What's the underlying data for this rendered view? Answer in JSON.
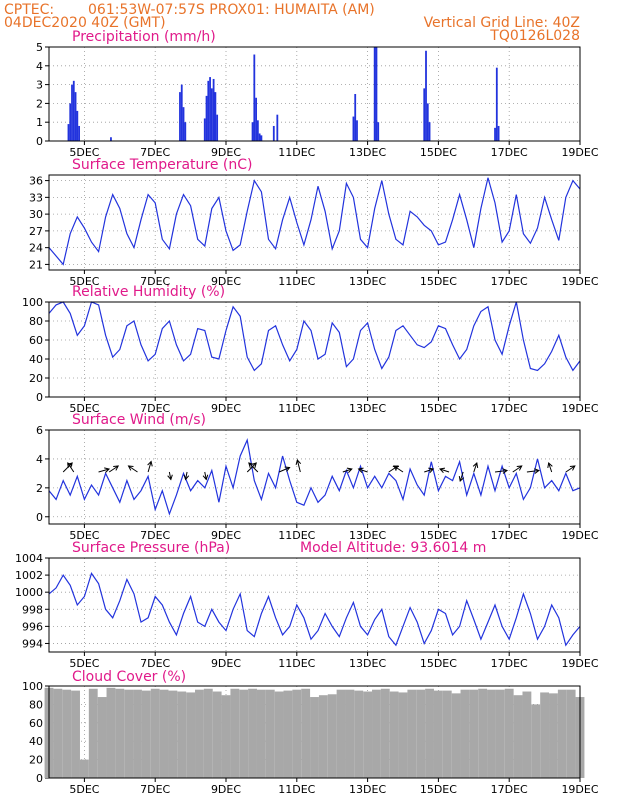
{
  "header": {
    "source": "CPTEC:",
    "location": "061:53W-07:57S   PROX01: HUMAITA (AM)",
    "run": "04DEC2020 40Z (GMT)",
    "grid_note": "Vertical Grid Line: 40Z",
    "model": "TQ0126L028"
  },
  "model_altitude_label": "Model Altitude:  93.6014  m",
  "date_ticks": [
    "5DEC",
    "7DEC",
    "9DEC",
    "11DEC",
    "13DEC",
    "15DEC",
    "17DEC",
    "19DEC"
  ],
  "colors": {
    "line": "#2233dd",
    "cloud": "#a8a8a8",
    "header": "#e8732a",
    "title": "#e01a8a"
  },
  "chart_data": [
    {
      "type": "bar",
      "title": "Precipitation  (mm/h)",
      "x_unit": "days since 04DEC2020 00Z",
      "ylim": [
        0,
        5
      ],
      "yticks": [
        "0",
        "1",
        "2",
        "3",
        "4",
        "5"
      ],
      "grid": true,
      "events": [
        [
          0.55,
          0.9
        ],
        [
          0.6,
          2.0
        ],
        [
          0.65,
          3.0
        ],
        [
          0.7,
          3.2
        ],
        [
          0.75,
          2.6
        ],
        [
          0.8,
          1.6
        ],
        [
          0.85,
          0.8
        ],
        [
          1.75,
          0.2
        ],
        [
          3.7,
          2.6
        ],
        [
          3.75,
          3.0
        ],
        [
          3.8,
          1.8
        ],
        [
          3.85,
          1.0
        ],
        [
          4.4,
          1.2
        ],
        [
          4.45,
          2.4
        ],
        [
          4.5,
          3.2
        ],
        [
          4.55,
          3.4
        ],
        [
          4.6,
          2.8
        ],
        [
          4.65,
          3.3
        ],
        [
          4.7,
          2.6
        ],
        [
          4.75,
          1.4
        ],
        [
          5.75,
          1.0
        ],
        [
          5.8,
          4.6
        ],
        [
          5.85,
          2.3
        ],
        [
          5.9,
          1.1
        ],
        [
          5.95,
          0.4
        ],
        [
          6.0,
          0.3
        ],
        [
          6.35,
          0.8
        ],
        [
          6.45,
          1.4
        ],
        [
          8.6,
          1.3
        ],
        [
          8.65,
          2.5
        ],
        [
          8.7,
          1.1
        ],
        [
          9.2,
          5.0
        ],
        [
          9.25,
          5.0
        ],
        [
          9.3,
          1.0
        ],
        [
          10.6,
          2.8
        ],
        [
          10.65,
          4.8
        ],
        [
          10.7,
          2.0
        ],
        [
          10.75,
          1.0
        ],
        [
          12.6,
          0.7
        ],
        [
          12.65,
          3.9
        ],
        [
          12.7,
          0.8
        ]
      ]
    },
    {
      "type": "line",
      "title": "Surface Temperature  (nC)",
      "x_unit": "days since 04DEC2020 00Z",
      "ylim": [
        20,
        37
      ],
      "yticks": [
        "21",
        "24",
        "27",
        "30",
        "33",
        "36"
      ],
      "grid": true,
      "x": [
        0,
        0.2,
        0.4,
        0.6,
        0.8,
        1.0,
        1.2,
        1.4,
        1.6,
        1.8,
        2.0,
        2.2,
        2.4,
        2.6,
        2.8,
        3.0,
        3.2,
        3.4,
        3.6,
        3.8,
        4.0,
        4.2,
        4.4,
        4.6,
        4.8,
        5.0,
        5.2,
        5.4,
        5.6,
        5.8,
        6.0,
        6.2,
        6.4,
        6.6,
        6.8,
        7.0,
        7.2,
        7.4,
        7.6,
        7.8,
        8.0,
        8.2,
        8.4,
        8.6,
        8.8,
        9.0,
        9.2,
        9.4,
        9.6,
        9.8,
        10.0,
        10.2,
        10.4,
        10.6,
        10.8,
        11.0,
        11.2,
        11.4,
        11.6,
        11.8,
        12.0,
        12.2,
        12.4,
        12.6,
        12.8,
        13.0,
        13.2,
        13.4,
        13.6,
        13.8,
        14.0,
        14.2,
        14.4,
        14.6,
        14.8,
        15.0
      ],
      "y": [
        24.0,
        22.5,
        21.0,
        26.5,
        29.5,
        27.5,
        25.0,
        23.3,
        29.5,
        33.5,
        31.0,
        26.5,
        24.0,
        29.0,
        33.5,
        32.0,
        25.5,
        23.8,
        30.0,
        33.5,
        31.5,
        25.5,
        24.3,
        31.0,
        33.0,
        27.0,
        23.5,
        24.5,
        30.5,
        36.0,
        34.0,
        25.5,
        23.8,
        29.0,
        33.0,
        28.5,
        24.5,
        29.0,
        35.0,
        30.5,
        23.8,
        27.0,
        35.5,
        33.0,
        25.5,
        24.0,
        31.0,
        36.0,
        30.0,
        25.5,
        24.5,
        30.5,
        29.5,
        28.0,
        27.0,
        24.5,
        25.0,
        29.0,
        33.5,
        29.0,
        24.0,
        31.0,
        36.5,
        32.0,
        25.0,
        27.0,
        33.5,
        26.5,
        24.8,
        27.5,
        33.0,
        29.0,
        25.3,
        33.0,
        36.0,
        34.5
      ]
    },
    {
      "type": "line",
      "title": "Relative Humidity  (%)",
      "x_unit": "days since 04DEC2020 00Z",
      "ylim": [
        0,
        100
      ],
      "yticks": [
        "0",
        "20",
        "40",
        "60",
        "80",
        "100"
      ],
      "grid": true,
      "x": [
        0,
        0.2,
        0.4,
        0.6,
        0.8,
        1.0,
        1.2,
        1.4,
        1.6,
        1.8,
        2.0,
        2.2,
        2.4,
        2.6,
        2.8,
        3.0,
        3.2,
        3.4,
        3.6,
        3.8,
        4.0,
        4.2,
        4.4,
        4.6,
        4.8,
        5.0,
        5.2,
        5.4,
        5.6,
        5.8,
        6.0,
        6.2,
        6.4,
        6.6,
        6.8,
        7.0,
        7.2,
        7.4,
        7.6,
        7.8,
        8.0,
        8.2,
        8.4,
        8.6,
        8.8,
        9.0,
        9.2,
        9.4,
        9.6,
        9.8,
        10.0,
        10.2,
        10.4,
        10.6,
        10.8,
        11.0,
        11.2,
        11.4,
        11.6,
        11.8,
        12.0,
        12.2,
        12.4,
        12.6,
        12.8,
        13.0,
        13.2,
        13.4,
        13.6,
        13.8,
        14.0,
        14.2,
        14.4,
        14.6,
        14.8,
        15.0
      ],
      "y": [
        88,
        97,
        100,
        88,
        65,
        75,
        100,
        97,
        65,
        42,
        50,
        75,
        80,
        55,
        38,
        45,
        72,
        80,
        55,
        38,
        45,
        72,
        70,
        42,
        40,
        70,
        95,
        85,
        42,
        28,
        35,
        70,
        75,
        55,
        38,
        50,
        80,
        70,
        40,
        45,
        78,
        68,
        32,
        40,
        70,
        78,
        50,
        30,
        42,
        70,
        75,
        65,
        55,
        52,
        58,
        75,
        72,
        55,
        40,
        50,
        75,
        90,
        95,
        60,
        45,
        75,
        100,
        60,
        30,
        28,
        35,
        48,
        65,
        42,
        28,
        38
      ]
    },
    {
      "type": "line",
      "title": "Surface Wind  (m/s)",
      "x_unit": "days since 04DEC2020 00Z",
      "ylim": [
        -0.5,
        6
      ],
      "yticks": [
        "0",
        "2",
        "4",
        "6"
      ],
      "grid": true,
      "x": [
        0,
        0.2,
        0.4,
        0.6,
        0.8,
        1.0,
        1.2,
        1.4,
        1.6,
        1.8,
        2.0,
        2.2,
        2.4,
        2.6,
        2.8,
        3.0,
        3.2,
        3.4,
        3.6,
        3.8,
        4.0,
        4.2,
        4.4,
        4.6,
        4.8,
        5.0,
        5.2,
        5.4,
        5.6,
        5.8,
        6.0,
        6.2,
        6.4,
        6.6,
        6.8,
        7.0,
        7.2,
        7.4,
        7.6,
        7.8,
        8.0,
        8.2,
        8.4,
        8.6,
        8.8,
        9.0,
        9.2,
        9.4,
        9.6,
        9.8,
        10.0,
        10.2,
        10.4,
        10.6,
        10.8,
        11.0,
        11.2,
        11.4,
        11.6,
        11.8,
        12.0,
        12.2,
        12.4,
        12.6,
        12.8,
        13.0,
        13.2,
        13.4,
        13.6,
        13.8,
        14.0,
        14.2,
        14.4,
        14.6,
        14.8,
        15.0
      ],
      "y": [
        1.8,
        1.2,
        2.5,
        1.5,
        2.8,
        1.2,
        2.2,
        1.5,
        3.0,
        2.0,
        1.0,
        2.5,
        1.2,
        1.8,
        2.8,
        0.5,
        1.8,
        0.2,
        1.5,
        3.0,
        1.8,
        2.5,
        2.0,
        3.2,
        1.0,
        3.5,
        2.0,
        4.2,
        5.3,
        2.5,
        1.2,
        3.0,
        2.0,
        4.2,
        2.5,
        1.0,
        0.8,
        2.0,
        1.0,
        1.5,
        2.8,
        1.8,
        3.2,
        2.0,
        3.5,
        2.0,
        2.8,
        2.0,
        3.0,
        2.5,
        1.2,
        3.3,
        2.2,
        1.5,
        3.8,
        1.8,
        2.8,
        2.5,
        3.8,
        1.5,
        3.0,
        1.5,
        3.5,
        1.8,
        3.5,
        2.0,
        3.0,
        1.2,
        2.0,
        4.0,
        2.0,
        2.5,
        1.8,
        3.0,
        1.8,
        2.0
      ],
      "arrows": [
        [
          0.4,
          0.3,
          0.3
        ],
        [
          0.7,
          -0.2,
          0.3
        ],
        [
          1.4,
          0.35,
          0.1
        ],
        [
          1.7,
          0.3,
          0.2
        ],
        [
          2.5,
          -0.3,
          0.2
        ],
        [
          2.8,
          0.1,
          0.35
        ],
        [
          3.4,
          0.05,
          -0.25
        ],
        [
          3.9,
          -0.05,
          -0.25
        ],
        [
          4.4,
          0.05,
          -0.25
        ],
        [
          5.6,
          0.3,
          0.3
        ],
        [
          5.9,
          -0.3,
          0.3
        ],
        [
          6.5,
          0.35,
          0.15
        ],
        [
          7.1,
          -0.1,
          0.4
        ],
        [
          8.3,
          0.3,
          0.1
        ],
        [
          9.0,
          -0.3,
          0.1
        ],
        [
          9.6,
          0.3,
          0.2
        ],
        [
          10.0,
          -0.3,
          0.2
        ],
        [
          10.6,
          0.3,
          0.1
        ],
        [
          11.3,
          -0.3,
          0.1
        ],
        [
          11.7,
          -0.1,
          -0.3
        ],
        [
          12.0,
          0.1,
          0.3
        ],
        [
          12.6,
          0.4,
          0.05
        ],
        [
          13.1,
          0.3,
          0.2
        ],
        [
          13.5,
          0.4,
          0.05
        ],
        [
          14.2,
          -0.1,
          0.3
        ],
        [
          14.6,
          0.3,
          0.2
        ]
      ]
    },
    {
      "type": "line",
      "title": "Surface Pressure  (hPa)",
      "x_unit": "days since 04DEC2020 00Z",
      "ylim": [
        993,
        1004
      ],
      "yticks": [
        "994",
        "996",
        "998",
        "1000",
        "1002",
        "1004"
      ],
      "grid": true,
      "x": [
        0,
        0.2,
        0.4,
        0.6,
        0.8,
        1.0,
        1.2,
        1.4,
        1.6,
        1.8,
        2.0,
        2.2,
        2.4,
        2.6,
        2.8,
        3.0,
        3.2,
        3.4,
        3.6,
        3.8,
        4.0,
        4.2,
        4.4,
        4.6,
        4.8,
        5.0,
        5.2,
        5.4,
        5.6,
        5.8,
        6.0,
        6.2,
        6.4,
        6.6,
        6.8,
        7.0,
        7.2,
        7.4,
        7.6,
        7.8,
        8.0,
        8.2,
        8.4,
        8.6,
        8.8,
        9.0,
        9.2,
        9.4,
        9.6,
        9.8,
        10.0,
        10.2,
        10.4,
        10.6,
        10.8,
        11.0,
        11.2,
        11.4,
        11.6,
        11.8,
        12.0,
        12.2,
        12.4,
        12.6,
        12.8,
        13.0,
        13.2,
        13.4,
        13.6,
        13.8,
        14.0,
        14.2,
        14.4,
        14.6,
        14.8,
        15.0
      ],
      "y": [
        999.8,
        1000.5,
        1002.0,
        1000.8,
        998.5,
        999.5,
        1002.2,
        1001.0,
        998.0,
        997.0,
        999.0,
        1001.5,
        999.8,
        996.5,
        997.0,
        999.5,
        998.5,
        996.5,
        995.0,
        997.5,
        999.5,
        996.5,
        996.0,
        998.0,
        996.5,
        995.5,
        998.0,
        999.8,
        995.5,
        994.8,
        997.5,
        999.5,
        997.0,
        995.0,
        996.0,
        998.5,
        997.0,
        994.5,
        995.5,
        997.5,
        996.0,
        994.8,
        997.0,
        998.8,
        996.0,
        995.0,
        996.8,
        998.0,
        994.8,
        993.8,
        996.0,
        998.2,
        996.5,
        994.0,
        995.5,
        998.0,
        997.5,
        995.0,
        996.0,
        999.0,
        996.8,
        994.5,
        996.5,
        998.5,
        996.0,
        994.5,
        997.0,
        999.8,
        997.5,
        994.5,
        996.0,
        998.5,
        997.0,
        993.8,
        995.0,
        996.0
      ]
    },
    {
      "type": "bar",
      "title": "Cloud Cover  (%)",
      "x_unit": "days since 04DEC2020 00Z",
      "ylim": [
        0,
        100
      ],
      "yticks": [
        "0",
        "20",
        "40",
        "60",
        "80",
        "100"
      ],
      "grid": true,
      "x": [
        0,
        0.25,
        0.5,
        0.75,
        1.0,
        1.25,
        1.5,
        1.75,
        2.0,
        2.25,
        2.5,
        2.75,
        3.0,
        3.25,
        3.5,
        3.75,
        4.0,
        4.25,
        4.5,
        4.75,
        5.0,
        5.25,
        5.5,
        5.75,
        6.0,
        6.25,
        6.5,
        6.75,
        7.0,
        7.25,
        7.5,
        7.75,
        8.0,
        8.25,
        8.5,
        8.75,
        9.0,
        9.25,
        9.5,
        9.75,
        10.0,
        10.25,
        10.5,
        10.75,
        11.0,
        11.25,
        11.5,
        11.75,
        12.0,
        12.25,
        12.5,
        12.75,
        13.0,
        13.25,
        13.5,
        13.75,
        14.0,
        14.25,
        14.5,
        14.75,
        15.0
      ],
      "values": [
        98,
        97,
        96,
        95,
        20,
        97,
        88,
        98,
        97,
        96,
        96,
        95,
        97,
        96,
        95,
        94,
        93,
        96,
        97,
        94,
        90,
        97,
        96,
        97,
        96,
        96,
        94,
        95,
        96,
        97,
        88,
        90,
        91,
        96,
        96,
        95,
        94,
        96,
        97,
        94,
        93,
        96,
        96,
        97,
        95,
        95,
        92,
        96,
        96,
        97,
        96,
        96,
        97,
        90,
        94,
        80,
        93,
        92,
        96,
        96,
        88
      ]
    }
  ]
}
